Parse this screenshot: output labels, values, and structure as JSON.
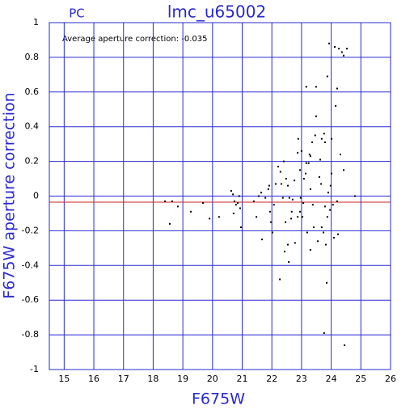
{
  "chart_data": {
    "type": "scatter",
    "title": "lmc_u65002",
    "panel_label": "PC",
    "annotation": "Average aperture correction: -0.035",
    "x_label": "F675W",
    "y_label": "F675W aperture correction",
    "color": "#000000",
    "grid": true,
    "grid_color": "#2a2ad0",
    "reference_line": {
      "value": -0.035,
      "color": "#cc2222"
    },
    "xlim": [
      14.5,
      26
    ],
    "ylim": [
      -1,
      1
    ],
    "xticks": [
      15,
      16,
      17,
      18,
      19,
      20,
      21,
      22,
      23,
      24,
      25,
      26
    ],
    "yticks": [
      -1,
      -0.8,
      -0.6,
      -0.4,
      -0.2,
      0,
      0.2,
      0.4,
      0.6,
      0.8,
      1
    ],
    "x": [
      18.4,
      18.56,
      18.64,
      18.83,
      19.27,
      19.68,
      19.9,
      20.22,
      20.63,
      20.69,
      20.74,
      20.71,
      20.79,
      20.85,
      20.9,
      20.96,
      20.93,
      21.39,
      21.48,
      21.56,
      21.64,
      21.67,
      21.78,
      21.88,
      21.94,
      21.97,
      21.91,
      22.02,
      22.07,
      22.13,
      22.21,
      22.27,
      22.29,
      22.32,
      22.37,
      22.4,
      22.43,
      22.46,
      22.48,
      22.54,
      22.54,
      22.57,
      22.59,
      22.65,
      22.67,
      22.7,
      22.76,
      22.78,
      22.87,
      22.87,
      22.89,
      22.95,
      22.95,
      22.97,
      23.0,
      23.03,
      23.06,
      23.08,
      23.14,
      23.16,
      23.16,
      23.19,
      23.24,
      23.27,
      23.3,
      23.3,
      23.3,
      23.36,
      23.38,
      23.41,
      23.46,
      23.49,
      23.49,
      23.55,
      23.6,
      23.63,
      23.66,
      23.68,
      23.68,
      23.74,
      23.76,
      23.76,
      23.79,
      23.79,
      23.82,
      23.85,
      23.87,
      23.87,
      23.9,
      23.93,
      23.96,
      23.98,
      24.01,
      24.01,
      24.06,
      24.09,
      24.12,
      24.15,
      24.2,
      24.2,
      24.23,
      24.26,
      24.31,
      24.36,
      24.42,
      24.42,
      24.45,
      24.53,
      24.8
    ],
    "values": [
      -0.03,
      -0.16,
      -0.03,
      -0.06,
      -0.09,
      -0.04,
      -0.13,
      -0.12,
      0.03,
      0.01,
      -0.03,
      -0.1,
      -0.05,
      -0.04,
      0.0,
      -0.18,
      -0.07,
      -0.03,
      -0.12,
      0.0,
      0.02,
      -0.25,
      -0.01,
      0.04,
      -0.09,
      -0.15,
      0.06,
      -0.21,
      -0.05,
      0.07,
      0.17,
      -0.48,
      0.14,
      0.07,
      -0.01,
      0.2,
      -0.32,
      -0.15,
      0.1,
      -0.28,
      0.06,
      -0.38,
      -0.01,
      -0.13,
      -0.09,
      -0.02,
      0.09,
      -0.27,
      -0.12,
      0.25,
      0.33,
      -0.09,
      0.15,
      -0.01,
      0.26,
      -0.12,
      -0.04,
      0.1,
      0.13,
      0.63,
      0.19,
      -0.21,
      0.19,
      0.24,
      -0.31,
      0.23,
      0.04,
      0.31,
      -0.05,
      -0.18,
      0.35,
      0.46,
      0.63,
      -0.26,
      0.11,
      0.21,
      0.07,
      0.33,
      -0.18,
      -0.21,
      0.36,
      -0.79,
      0.31,
      -0.06,
      -0.28,
      -0.5,
      0.69,
      -0.12,
      0.02,
      0.88,
      -0.08,
      0.06,
      0.33,
      0.13,
      -0.05,
      -0.24,
      0.86,
      0.52,
      0.62,
      -0.03,
      -0.22,
      0.85,
      0.24,
      0.83,
      0.81,
      0.15,
      -0.86,
      0.85,
      0.0
    ]
  }
}
